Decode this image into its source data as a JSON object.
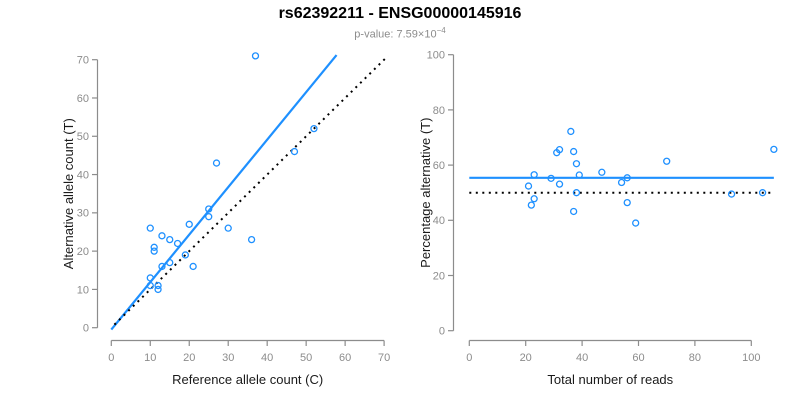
{
  "figure": {
    "title": "rs62392211 - ENSG00000145916",
    "pvalue_prefix": "p-value: 7.59×10",
    "pvalue_exponent": "−4"
  },
  "colors": {
    "accent_blue": "#1e90ff",
    "reference_line_black": "#000000",
    "axis_gray": "#8c8c8c",
    "axis_title_black": "#1a1a1a",
    "subtitle_gray": "#8c8c8c",
    "background": "#ffffff"
  },
  "chart_data": [
    {
      "type": "scatter",
      "panel": "allele-counts-scatter",
      "xlabel": "Reference allele count (C)",
      "ylabel": "Alternative allele count (T)",
      "xlim": [
        0,
        70
      ],
      "ylim": [
        0,
        70
      ],
      "xticks": [
        0,
        10,
        20,
        30,
        40,
        50,
        60,
        70
      ],
      "yticks": [
        0,
        10,
        20,
        30,
        40,
        50,
        60,
        70
      ],
      "grid": false,
      "legend": null,
      "points": [
        [
          10,
          26
        ],
        [
          13,
          24
        ],
        [
          15,
          23
        ],
        [
          17,
          22
        ],
        [
          11,
          21
        ],
        [
          11,
          20
        ],
        [
          20,
          27
        ],
        [
          25,
          31
        ],
        [
          25,
          29
        ],
        [
          30,
          26
        ],
        [
          36,
          23
        ],
        [
          13,
          16
        ],
        [
          15,
          17
        ],
        [
          21,
          16
        ],
        [
          19,
          19
        ],
        [
          10,
          13
        ],
        [
          10,
          11
        ],
        [
          12,
          11
        ],
        [
          12,
          10
        ],
        [
          37,
          71
        ],
        [
          27,
          43
        ],
        [
          47,
          46
        ],
        [
          52,
          52
        ]
      ],
      "lines": [
        {
          "name": "fitted-ratio-line",
          "style": "solid",
          "color": "#1e90ff",
          "width": 2.2,
          "from": [
            0,
            -0.5
          ],
          "to": [
            57.8,
            71.2
          ]
        },
        {
          "name": "identity-line",
          "style": "dotted",
          "color": "#000000",
          "width": 2,
          "from": [
            0.8,
            0.8
          ],
          "to": [
            71,
            71
          ]
        }
      ]
    },
    {
      "type": "scatter",
      "panel": "percentage-vs-reads-scatter",
      "xlabel": "Total number of reads",
      "ylabel": "Percentage alternative (T)",
      "xlim": [
        0,
        100
      ],
      "ylim": [
        0,
        100
      ],
      "xticks": [
        0,
        20,
        40,
        60,
        80,
        100
      ],
      "yticks": [
        0,
        20,
        40,
        60,
        80,
        100
      ],
      "grid": false,
      "legend": null,
      "points": [
        [
          36,
          72.2
        ],
        [
          37,
          64.9
        ],
        [
          38,
          60.5
        ],
        [
          39,
          56.4
        ],
        [
          32,
          65.6
        ],
        [
          31,
          64.5
        ],
        [
          47,
          57.4
        ],
        [
          56,
          55.4
        ],
        [
          54,
          53.7
        ],
        [
          56,
          46.4
        ],
        [
          59,
          39
        ],
        [
          29,
          55.2
        ],
        [
          32,
          53.1
        ],
        [
          37,
          43.2
        ],
        [
          38,
          50
        ],
        [
          23,
          56.5
        ],
        [
          21,
          52.4
        ],
        [
          23,
          47.8
        ],
        [
          22,
          45.5
        ],
        [
          108,
          65.7
        ],
        [
          70,
          61.4
        ],
        [
          93,
          49.5
        ],
        [
          104,
          50
        ]
      ],
      "lines": [
        {
          "name": "mean-percentage-line",
          "style": "solid",
          "color": "#1e90ff",
          "width": 2.2,
          "from": [
            0,
            55.4
          ],
          "to": [
            108,
            55.4
          ]
        },
        {
          "name": "expected-50-percent-line",
          "style": "dotted",
          "color": "#000000",
          "width": 2,
          "from": [
            0,
            50
          ],
          "to": [
            108,
            50
          ]
        }
      ]
    }
  ]
}
